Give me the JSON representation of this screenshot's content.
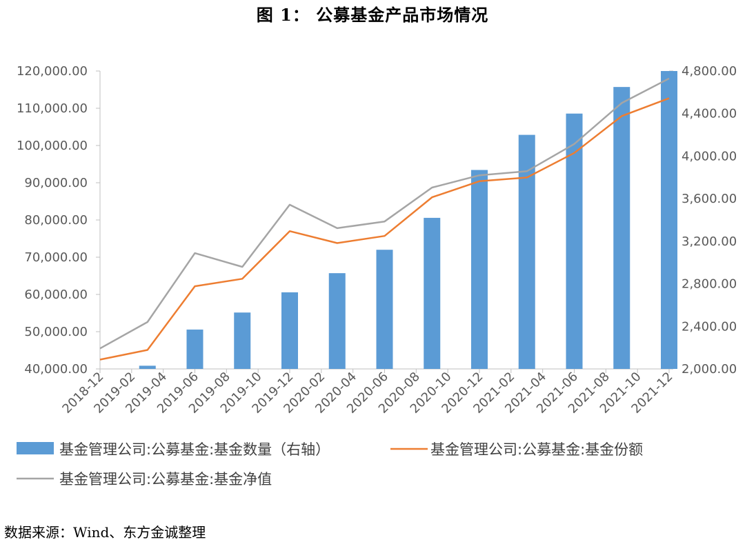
{
  "title": "图 1：  公募基金产品市场情况",
  "source": "数据来源：Wind、东方金诚整理",
  "colors": {
    "bar": "#5B9BD5",
    "share_line": "#ED7D31",
    "nav_line": "#A5A5A5",
    "axis": "#BFBFBF",
    "tick_text": "#595959"
  },
  "chart_data": {
    "type": "bar+line",
    "x": [
      "2018-12",
      "2019-02",
      "2019-04",
      "2019-06",
      "2019-08",
      "2019-10",
      "2019-12",
      "2020-02",
      "2020-04",
      "2020-06",
      "2020-08",
      "2020-10",
      "2020-12",
      "2021-02",
      "2021-04",
      "2021-06",
      "2021-08",
      "2021-10",
      "2021-12"
    ],
    "left_axis": {
      "ylim": [
        40000,
        120000
      ],
      "ticks": [
        "40,000.00",
        "50,000.00",
        "60,000.00",
        "70,000.00",
        "80,000.00",
        "90,000.00",
        "100,000.00",
        "110,000.00",
        "120,000.00"
      ]
    },
    "right_axis": {
      "ylim": [
        2000,
        4800
      ],
      "ticks": [
        "2,000.00",
        "2,400.00",
        "2,800.00",
        "3,200.00",
        "3,600.00",
        "4,000.00",
        "4,400.00",
        "4,800.00"
      ]
    },
    "series": [
      {
        "name": "基金管理公司:公募基金:基金数量（右轴）",
        "kind": "bar",
        "axis": "right",
        "x": [
          "2019-03",
          "2019-06",
          "2019-09",
          "2019-12",
          "2020-03",
          "2020-06",
          "2020-09",
          "2020-12",
          "2021-03",
          "2021-06",
          "2021-09",
          "2021-12"
        ],
        "values": [
          2030,
          2370,
          2530,
          2720,
          2900,
          3120,
          3420,
          3870,
          4200,
          4400,
          4650,
          4800
        ]
      },
      {
        "name": "基金管理公司:公募基金:基金份额",
        "kind": "line",
        "axis": "left",
        "x": [
          "2018-12",
          "2019-03",
          "2019-06",
          "2019-09",
          "2019-12",
          "2020-03",
          "2020-06",
          "2020-09",
          "2020-12",
          "2021-03",
          "2021-06",
          "2021-09",
          "2021-12"
        ],
        "values": [
          42500,
          45100,
          62200,
          64200,
          77000,
          73800,
          75700,
          86100,
          90400,
          91400,
          98000,
          107900,
          112700
        ]
      },
      {
        "name": "基金管理公司:公募基金:基金净值",
        "kind": "line",
        "axis": "left",
        "x": [
          "2018-12",
          "2019-03",
          "2019-06",
          "2019-09",
          "2019-12",
          "2020-03",
          "2020-06",
          "2020-09",
          "2020-12",
          "2021-03",
          "2021-06",
          "2021-09",
          "2021-12"
        ],
        "values": [
          45500,
          52600,
          71100,
          67400,
          84100,
          77800,
          79600,
          88700,
          92000,
          93100,
          100400,
          111400,
          118000
        ]
      }
    ],
    "legend_position": "bottom",
    "grid": false
  }
}
